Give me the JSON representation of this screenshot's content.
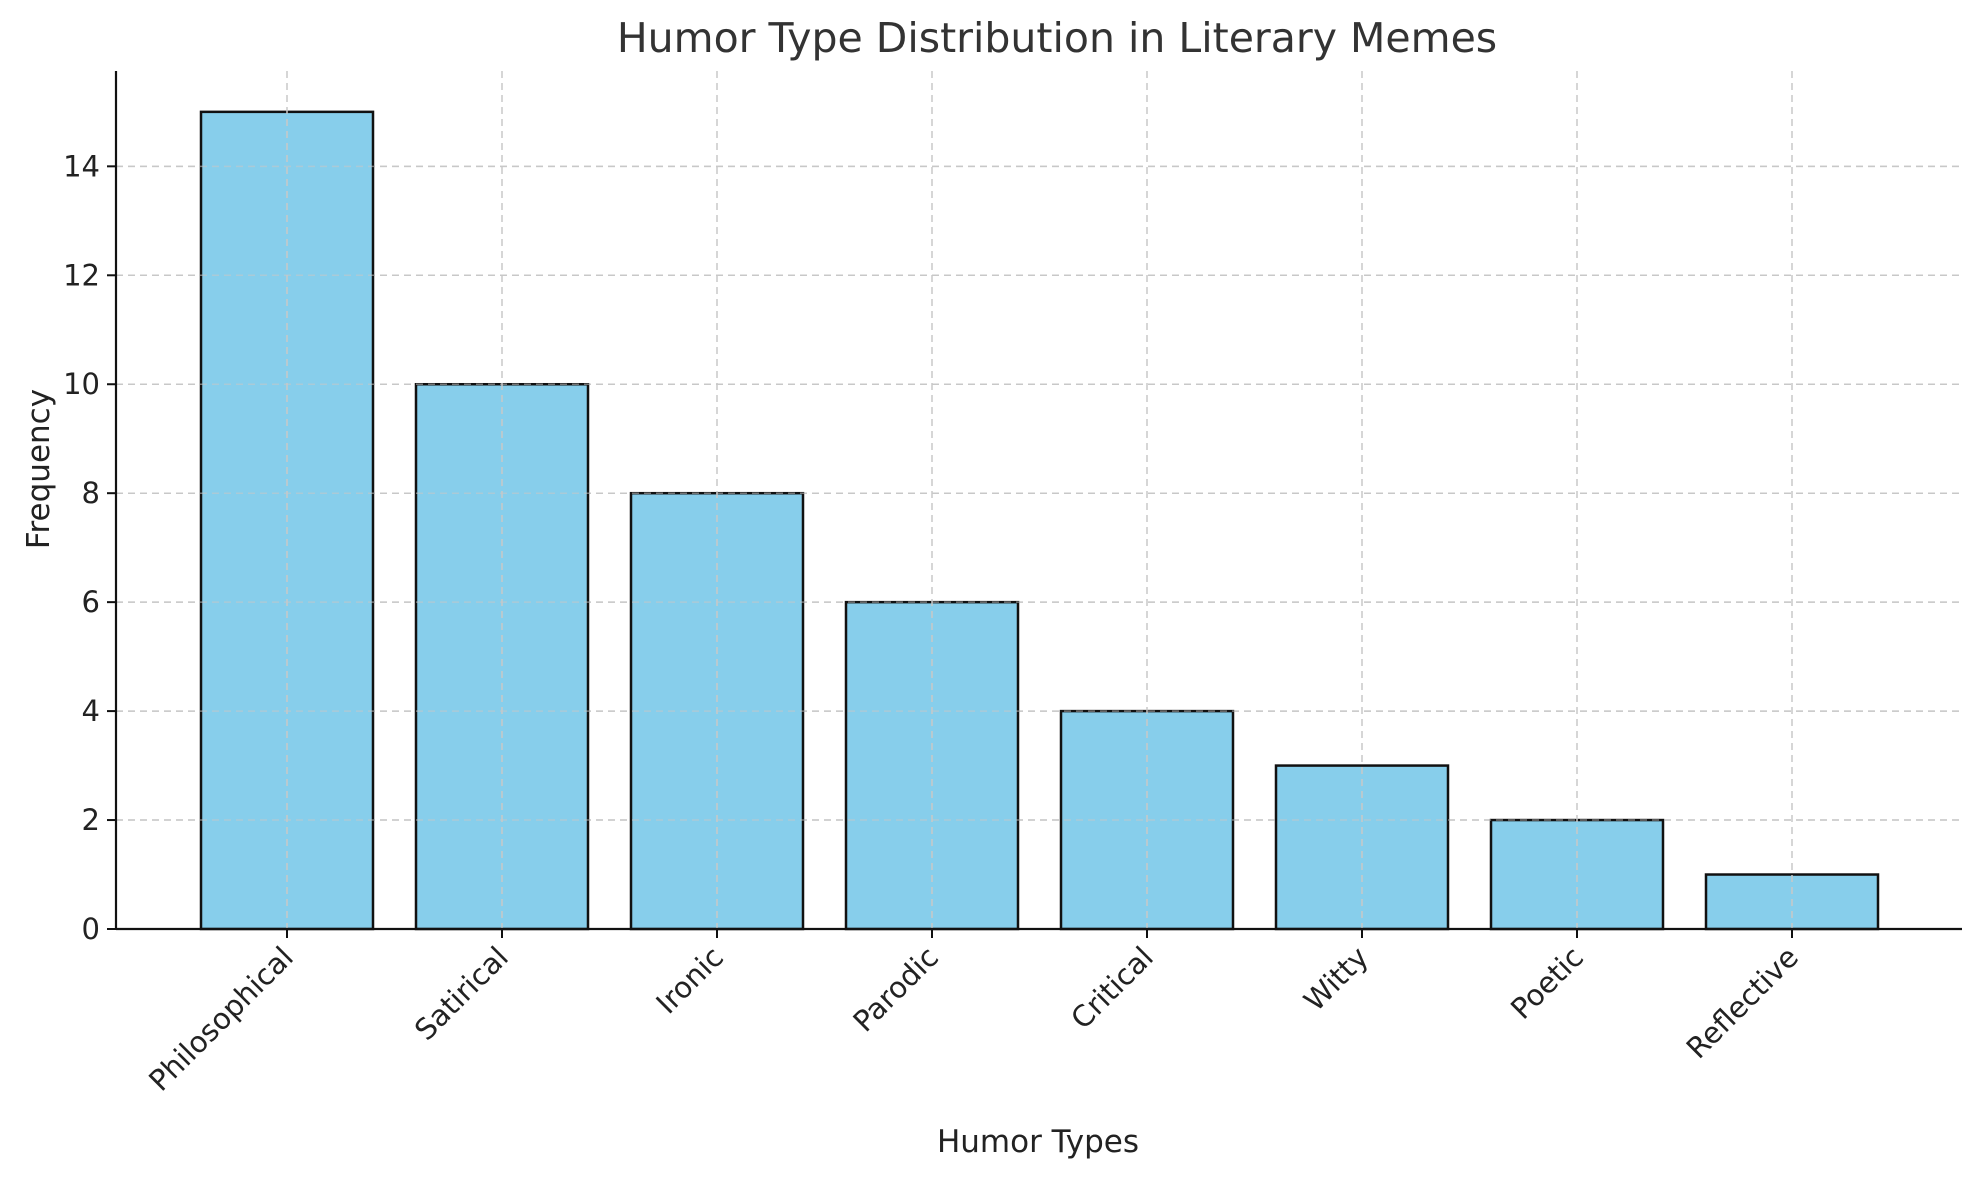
{
  "chart_data": {
    "type": "bar",
    "title": "Humor Type Distribution in Literary Memes",
    "xlabel": "Humor Types",
    "ylabel": "Frequency",
    "categories": [
      "Philosophical",
      "Satirical",
      "Ironic",
      "Parodic",
      "Critical",
      "Witty",
      "Poetic",
      "Reflective"
    ],
    "values": [
      15,
      10,
      8,
      6,
      4,
      3,
      2,
      1
    ],
    "ylim": [
      0,
      15.75
    ],
    "yticks": [
      0,
      2,
      4,
      6,
      8,
      10,
      12,
      14
    ],
    "grid": true,
    "bar_color": "#87CEEB",
    "edge_color": "#000000"
  }
}
